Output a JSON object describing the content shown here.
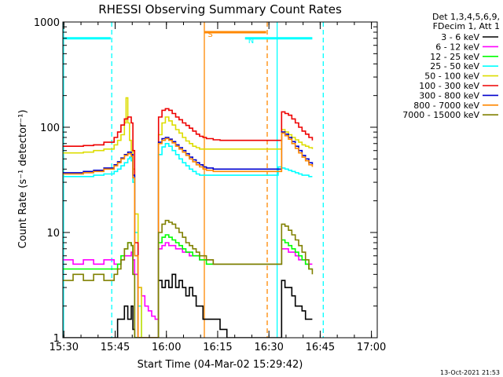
{
  "chart_data": {
    "type": "line",
    "title": "RHESSI Observing Summary Count Rates",
    "xlabel": "Start Time (04-Mar-02 15:29:42)",
    "ylabel": "Count Rate (s⁻¹ detector⁻¹)",
    "yscale": "log",
    "xlim": [
      0,
      92
    ],
    "ylim": [
      1,
      1000
    ],
    "x_ticks": [
      {
        "x": 0.3,
        "label": "15:30"
      },
      {
        "x": 15.3,
        "label": "15:45"
      },
      {
        "x": 30.3,
        "label": "16:00"
      },
      {
        "x": 45.3,
        "label": "16:15"
      },
      {
        "x": 60.3,
        "label": "16:30"
      },
      {
        "x": 75.3,
        "label": "16:45"
      },
      {
        "x": 90.3,
        "label": "17:00"
      }
    ],
    "y_ticks": [
      {
        "y": 1,
        "label": "1"
      },
      {
        "y": 10,
        "label": "10"
      },
      {
        "y": 100,
        "label": "100"
      },
      {
        "y": 1000,
        "label": "1000"
      }
    ],
    "legend_header": [
      "Det 1,3,4,5,6,9,",
      "FDecim 1, Att 1"
    ],
    "legend_position": "right",
    "grid": false,
    "series": [
      {
        "name": "3 - 6 keV",
        "color": "#000000",
        "x": [
          0,
          5,
          9,
          12,
          15,
          16,
          17,
          18,
          19,
          20,
          20.5,
          21,
          21.5,
          22,
          22.5,
          23,
          24,
          25,
          26,
          27,
          28,
          29,
          30,
          31,
          32,
          33,
          34,
          35,
          36,
          37,
          38,
          39,
          40,
          41,
          42,
          44,
          46,
          48,
          50,
          51,
          52,
          53,
          54,
          55,
          56,
          57,
          58,
          59,
          60,
          61,
          62,
          63,
          64,
          65,
          66,
          67,
          68,
          69,
          70,
          71,
          72,
          73
        ],
        "y": [
          1,
          1,
          1,
          1,
          1,
          1.5,
          1.5,
          2,
          1.5,
          2,
          1.2,
          1,
          1,
          1,
          1,
          1,
          1,
          1,
          1,
          1,
          3.5,
          3,
          3.5,
          3,
          4,
          3,
          3.5,
          3,
          2.5,
          3,
          2.5,
          2,
          2,
          1.5,
          1.5,
          1.5,
          1.2,
          1,
          1,
          1,
          1,
          1,
          1,
          1,
          1,
          1,
          1,
          1,
          1,
          1,
          1,
          1,
          3.5,
          3,
          3,
          2.5,
          2,
          2,
          1.8,
          1.5,
          1.5,
          1.5
        ]
      },
      {
        "name": "6 - 12 keV",
        "color": "#ff00ff",
        "x": [
          0,
          3,
          6,
          9,
          12,
          15,
          16,
          17,
          18,
          19,
          20,
          20.5,
          21,
          22,
          23,
          24,
          25,
          26,
          27,
          28,
          29,
          30,
          31,
          32,
          33,
          34,
          35,
          36,
          37,
          38,
          39,
          40,
          41,
          42,
          44,
          46,
          48,
          50,
          51,
          52,
          53,
          54,
          55,
          56,
          57,
          58,
          59,
          60,
          61,
          62,
          63,
          64,
          65,
          66,
          67,
          68,
          69,
          70,
          71,
          72,
          73
        ],
        "y": [
          5.5,
          5,
          5.5,
          5,
          5.5,
          5,
          5,
          5.5,
          6,
          6,
          6.5,
          5.5,
          4,
          3,
          2.5,
          2,
          1.8,
          1.6,
          1.5,
          7,
          7.5,
          8,
          7.5,
          7.5,
          7,
          7,
          6.5,
          6.5,
          6,
          6,
          6,
          5.5,
          5.5,
          5.5,
          5,
          5,
          5,
          5,
          5,
          5,
          5,
          5,
          5,
          5,
          5,
          5,
          5,
          5,
          5,
          5,
          5,
          7,
          7,
          6.5,
          6.5,
          6,
          5.5,
          5.5,
          5,
          5,
          5
        ]
      },
      {
        "name": "12 - 25 keV",
        "color": "#00ff00",
        "x": [
          0,
          3,
          6,
          9,
          12,
          15,
          16,
          17,
          18,
          19,
          20,
          20.5,
          21,
          22,
          23,
          24,
          25,
          26,
          27,
          28,
          29,
          30,
          31,
          32,
          33,
          34,
          35,
          36,
          37,
          38,
          39,
          40,
          41,
          42,
          44,
          46,
          48,
          50,
          51,
          52,
          53,
          54,
          55,
          56,
          57,
          58,
          59,
          60,
          61,
          62,
          63,
          64,
          65,
          66,
          67,
          68,
          69,
          70,
          71,
          72,
          73
        ],
        "y": [
          4.5,
          4.5,
          4.5,
          4.5,
          4.5,
          4.5,
          5,
          6,
          7,
          8,
          7.5,
          4,
          1,
          1,
          1,
          1,
          1,
          1,
          1,
          8,
          9,
          9.5,
          9,
          8.5,
          8,
          7.5,
          7,
          6.5,
          6.5,
          6,
          6,
          5.5,
          5.5,
          5,
          5,
          5,
          5,
          5,
          5,
          5,
          5,
          5,
          5,
          5,
          5,
          5,
          5,
          5,
          5,
          5,
          5,
          8.5,
          8,
          7.5,
          7,
          6.5,
          6,
          5.5,
          5,
          4.5,
          4.5
        ]
      },
      {
        "name": "25 - 50 keV",
        "color": "#00ffff",
        "x": [
          0,
          3,
          6,
          9,
          12,
          15,
          16,
          17,
          18,
          19,
          19.5,
          20,
          20.5,
          21,
          22,
          23,
          24,
          25,
          26,
          27,
          28,
          29,
          30,
          31,
          32,
          33,
          34,
          35,
          36,
          37,
          38,
          39,
          40,
          41,
          42,
          44,
          46,
          48,
          50,
          51,
          52,
          53,
          54,
          55,
          56,
          57,
          58,
          59,
          60,
          61,
          62,
          63,
          64,
          65,
          66,
          67,
          68,
          69,
          70,
          71,
          72,
          73
        ],
        "y": [
          34,
          34,
          34,
          35,
          36,
          38,
          40,
          43,
          46,
          50,
          52,
          48,
          30,
          10,
          2,
          1,
          1,
          1,
          1,
          1,
          55,
          65,
          70,
          66,
          60,
          55,
          50,
          46,
          43,
          40,
          38,
          36,
          35,
          35,
          35,
          35,
          35,
          35,
          35,
          35,
          35,
          35,
          35,
          35,
          35,
          35,
          35,
          35,
          35,
          35,
          35,
          42,
          41,
          40,
          39,
          38,
          37,
          36,
          35,
          35,
          34,
          34
        ]
      },
      {
        "name": "50 - 100 keV",
        "color": "#dddd00",
        "x": [
          0,
          3,
          6,
          9,
          12,
          15,
          16,
          17,
          18,
          18.5,
          19,
          19.5,
          20,
          20.5,
          21,
          22,
          23,
          24,
          25,
          26,
          27,
          28,
          29,
          30,
          31,
          32,
          33,
          34,
          35,
          36,
          37,
          38,
          39,
          40,
          41,
          42,
          44,
          46,
          48,
          50,
          51,
          52,
          53,
          54,
          55,
          56,
          57,
          58,
          59,
          60,
          61,
          62,
          63,
          64,
          65,
          66,
          67,
          68,
          69,
          70,
          71,
          72,
          73
        ],
        "y": [
          57,
          57,
          58,
          60,
          62,
          68,
          75,
          85,
          110,
          190,
          110,
          75,
          60,
          40,
          15,
          3,
          1,
          1,
          1,
          1,
          1,
          85,
          110,
          125,
          115,
          105,
          95,
          88,
          80,
          74,
          70,
          66,
          64,
          62,
          62,
          62,
          62,
          62,
          62,
          62,
          62,
          62,
          62,
          62,
          62,
          62,
          62,
          62,
          62,
          62,
          62,
          62,
          62,
          95,
          90,
          85,
          80,
          76,
          72,
          68,
          66,
          64,
          62
        ]
      },
      {
        "name": "100 - 300 keV",
        "color": "#ee0000",
        "x": [
          0,
          3,
          6,
          9,
          12,
          15,
          16,
          17,
          18,
          19,
          20,
          20.5,
          21,
          22,
          23,
          24,
          25,
          26,
          27,
          28,
          29,
          30,
          31,
          32,
          33,
          34,
          35,
          36,
          37,
          38,
          39,
          40,
          41,
          42,
          44,
          46,
          48,
          50,
          51,
          52,
          53,
          54,
          55,
          56,
          57,
          58,
          59,
          60,
          61,
          62,
          63,
          64,
          65,
          66,
          67,
          68,
          69,
          70,
          71,
          72,
          73
        ],
        "y": [
          66,
          66,
          67,
          68,
          72,
          80,
          90,
          105,
          120,
          125,
          110,
          60,
          8,
          1,
          1,
          1,
          1,
          1,
          1,
          125,
          145,
          150,
          145,
          135,
          125,
          118,
          110,
          104,
          98,
          92,
          86,
          82,
          80,
          78,
          76,
          75,
          75,
          75,
          75,
          75,
          75,
          75,
          75,
          75,
          75,
          75,
          75,
          75,
          75,
          75,
          75,
          140,
          135,
          130,
          120,
          110,
          100,
          92,
          86,
          80,
          75
        ]
      },
      {
        "name": "300 - 800 keV",
        "color": "#0000cc",
        "x": [
          0,
          3,
          6,
          9,
          12,
          15,
          16,
          17,
          18,
          19,
          20,
          20.5,
          21,
          22,
          23,
          24,
          25,
          26,
          27,
          28,
          29,
          30,
          31,
          32,
          33,
          34,
          35,
          36,
          37,
          38,
          39,
          40,
          41,
          42,
          44,
          46,
          48,
          50,
          51,
          52,
          53,
          54,
          55,
          56,
          57,
          58,
          59,
          60,
          61,
          62,
          63,
          64,
          65,
          66,
          67,
          68,
          69,
          70,
          71,
          72,
          73
        ],
        "y": [
          37,
          37,
          38,
          39,
          41,
          44,
          47,
          51,
          55,
          58,
          55,
          35,
          6,
          1,
          1,
          1,
          1,
          1,
          1,
          72,
          78,
          80,
          77,
          73,
          68,
          64,
          60,
          56,
          52,
          49,
          46,
          44,
          42,
          41,
          40,
          40,
          40,
          40,
          40,
          40,
          40,
          40,
          40,
          40,
          40,
          40,
          40,
          40,
          40,
          40,
          40,
          90,
          86,
          80,
          73,
          66,
          60,
          54,
          50,
          46,
          44
        ]
      },
      {
        "name": "800 - 7000 keV",
        "color": "#ff8800",
        "x": [
          0,
          3,
          6,
          9,
          12,
          15,
          16,
          17,
          18,
          19,
          20,
          20.5,
          21,
          22,
          23,
          24,
          25,
          26,
          27,
          28,
          29,
          30,
          31,
          32,
          33,
          34,
          35,
          36,
          37,
          38,
          39,
          40,
          41,
          42,
          44,
          46,
          48,
          50,
          51,
          52,
          53,
          54,
          55,
          56,
          57,
          58,
          59,
          60,
          61,
          62,
          63,
          64,
          65,
          66,
          67,
          68,
          69,
          70,
          71,
          72,
          73
        ],
        "y": [
          36,
          36,
          37,
          38,
          40,
          43,
          46,
          50,
          54,
          56,
          53,
          33,
          6,
          1,
          1,
          1,
          1,
          1,
          1,
          70,
          75,
          78,
          75,
          71,
          66,
          62,
          58,
          54,
          50,
          47,
          44,
          42,
          40,
          39,
          38,
          38,
          38,
          38,
          38,
          38,
          38,
          38,
          38,
          38,
          38,
          38,
          38,
          38,
          38,
          38,
          38,
          88,
          83,
          77,
          70,
          63,
          57,
          52,
          48,
          44,
          42
        ]
      },
      {
        "name": "7000 - 15000 keV",
        "color": "#808000",
        "x": [
          0,
          3,
          6,
          9,
          12,
          15,
          16,
          17,
          18,
          19,
          20,
          20.5,
          21,
          22,
          23,
          24,
          25,
          26,
          27,
          28,
          29,
          30,
          31,
          32,
          33,
          34,
          35,
          36,
          37,
          38,
          39,
          40,
          41,
          42,
          44,
          46,
          48,
          50,
          51,
          52,
          53,
          54,
          55,
          56,
          57,
          58,
          59,
          60,
          61,
          62,
          63,
          64,
          65,
          66,
          67,
          68,
          69,
          70,
          71,
          72,
          73
        ],
        "y": [
          3.5,
          4,
          3.5,
          4,
          3.5,
          4,
          4.5,
          5.5,
          7,
          8,
          7.5,
          4,
          1,
          1,
          1,
          1,
          1,
          1,
          1,
          10,
          12,
          13,
          12.5,
          12,
          11,
          10,
          9,
          8,
          7.5,
          7,
          6.5,
          6,
          6,
          5.5,
          5,
          5,
          5,
          5,
          5,
          5,
          5,
          5,
          5,
          5,
          5,
          5,
          5,
          5,
          5,
          5,
          5,
          12,
          11.5,
          10.5,
          9.5,
          8.5,
          7.5,
          6.5,
          5.5,
          4.5,
          4
        ]
      }
    ],
    "bars": [
      {
        "label": "",
        "color": "#00ffff",
        "x_start": 0,
        "x_end": 14,
        "y": 700
      },
      {
        "label": "N",
        "color": "#00ffff",
        "x_start": 53.3,
        "x_end": 73,
        "y": 700
      },
      {
        "label": "S",
        "color": "#ff8800",
        "x_start": 41.5,
        "x_end": 59.5,
        "y": 800
      }
    ],
    "vlines": [
      {
        "x": 0.2,
        "color": "#00ffff",
        "style": "solid"
      },
      {
        "x": 14.3,
        "color": "#00ffff",
        "style": "dashed"
      },
      {
        "x": 41.4,
        "color": "#ff8800",
        "style": "solid"
      },
      {
        "x": 59.8,
        "color": "#ff8800",
        "style": "dashed"
      },
      {
        "x": 62.7,
        "color": "#00ffff",
        "style": "solid"
      },
      {
        "x": 76.2,
        "color": "#00ffff",
        "style": "dashed"
      }
    ],
    "timestamp": "13-Oct-2021 21:53"
  }
}
